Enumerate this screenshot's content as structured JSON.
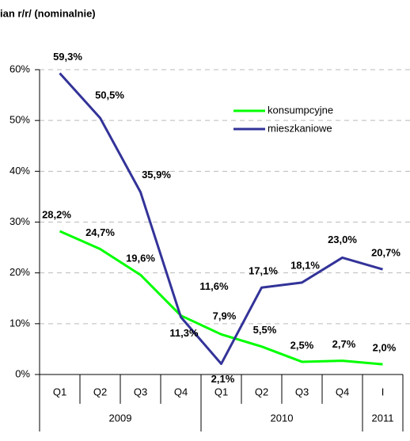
{
  "chart_data": {
    "type": "line",
    "title": "ian r/r/ (nominalnie)",
    "categories": [
      "Q1",
      "Q2",
      "Q3",
      "Q4",
      "Q1",
      "Q2",
      "Q3",
      "Q4",
      "I"
    ],
    "groups": [
      "2009",
      "2010",
      "2011"
    ],
    "series": [
      {
        "name": "konsumpcyjne",
        "color": "#00ff00",
        "values": [
          28.2,
          24.7,
          19.6,
          11.6,
          7.9,
          5.5,
          2.5,
          2.7,
          2.0
        ],
        "value_labels": [
          "28,2%",
          "24,7%",
          "19,6%",
          "11,6%",
          "7,9%",
          "5,5%",
          "2,5%",
          "2,7%",
          "2,0%"
        ]
      },
      {
        "name": "mieszkaniowe",
        "color": "#333399",
        "values": [
          59.3,
          50.5,
          35.9,
          11.3,
          2.1,
          17.1,
          18.1,
          23.0,
          20.7
        ],
        "value_labels": [
          "59,3%",
          "50,5%",
          "35,9%",
          "11,3%",
          "2,1%",
          "17,1%",
          "18,1%",
          "23,0%",
          "20,7%"
        ]
      }
    ],
    "ylim": [
      0,
      60
    ],
    "yticks": [
      {
        "value": 0,
        "label": "0%"
      },
      {
        "value": 10,
        "label": "10%"
      },
      {
        "value": 20,
        "label": "20%"
      },
      {
        "value": 30,
        "label": "30%"
      },
      {
        "value": 40,
        "label": "40%"
      },
      {
        "value": 50,
        "label": "50%"
      },
      {
        "value": 60,
        "label": "60%"
      }
    ],
    "grid": true
  }
}
